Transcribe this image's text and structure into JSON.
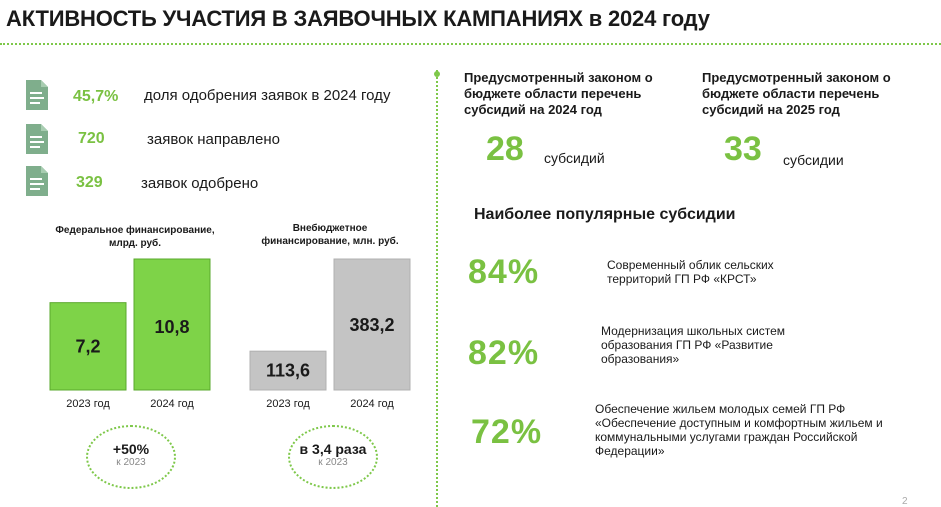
{
  "title": "АКТИВНОСТЬ УЧАСТИЯ В ЗАЯВОЧНЫХ КАМПАНИЯХ в 2024 году",
  "stats": [
    {
      "value": "45,7%",
      "label": "доля одобрения заявок в 2024 году",
      "icon": "document-icon"
    },
    {
      "value": "720",
      "label": "заявок направлено",
      "icon": "document-icon"
    },
    {
      "value": "329",
      "label": "заявок одобрено",
      "icon": "document-icon"
    }
  ],
  "colors": {
    "accent": "#7ac142",
    "bar_green": "#7ed348",
    "bar_gray": "#c4c4c4",
    "dotted": "#7ec84a"
  },
  "chart_data": [
    {
      "type": "bar",
      "title": "Федеральное финансирование, млрд. руб.",
      "categories": [
        "2023 год",
        "2024 год"
      ],
      "values": [
        7.2,
        10.8
      ],
      "value_labels": [
        "7,2",
        "10,8"
      ],
      "color": "#7ed348",
      "xlabel": "",
      "ylabel": ""
    },
    {
      "type": "bar",
      "title": "Внебюджетное финансирование, млн. руб.",
      "categories": [
        "2023 год",
        "2024 год"
      ],
      "values": [
        113.6,
        383.2
      ],
      "value_labels": [
        "113,6",
        "383,2"
      ],
      "color": "#c4c4c4",
      "xlabel": "",
      "ylabel": ""
    }
  ],
  "growth": [
    {
      "main": "+50%",
      "sub": "к 2023"
    },
    {
      "main": "в 3,4 раза",
      "sub": "к 2023"
    }
  ],
  "budget": [
    {
      "heading": "Предусмотренный законом о бюджете области перечень субсидий на 2024 год",
      "number": "28",
      "unit": "субсидий"
    },
    {
      "heading": "Предусмотренный законом о бюджете области перечень субсидий на 2025 год",
      "number": "33",
      "unit": "субсидии"
    }
  ],
  "popular": {
    "title": "Наиболее популярные субсидии",
    "items": [
      {
        "percent": "84%",
        "value": 84,
        "desc": "Современный облик сельских территорий ГП РФ «КРСТ»"
      },
      {
        "percent": "82%",
        "value": 82,
        "desc": "Модернизация школьных систем образования ГП РФ «Развитие образования»"
      },
      {
        "percent": "72%",
        "value": 72,
        "desc": "Обеспечение жильем молодых семей ГП РФ «Обеспечение доступным и комфортным жильем и коммунальными услугами граждан Российской Федерации»"
      }
    ]
  },
  "page_number": "2"
}
